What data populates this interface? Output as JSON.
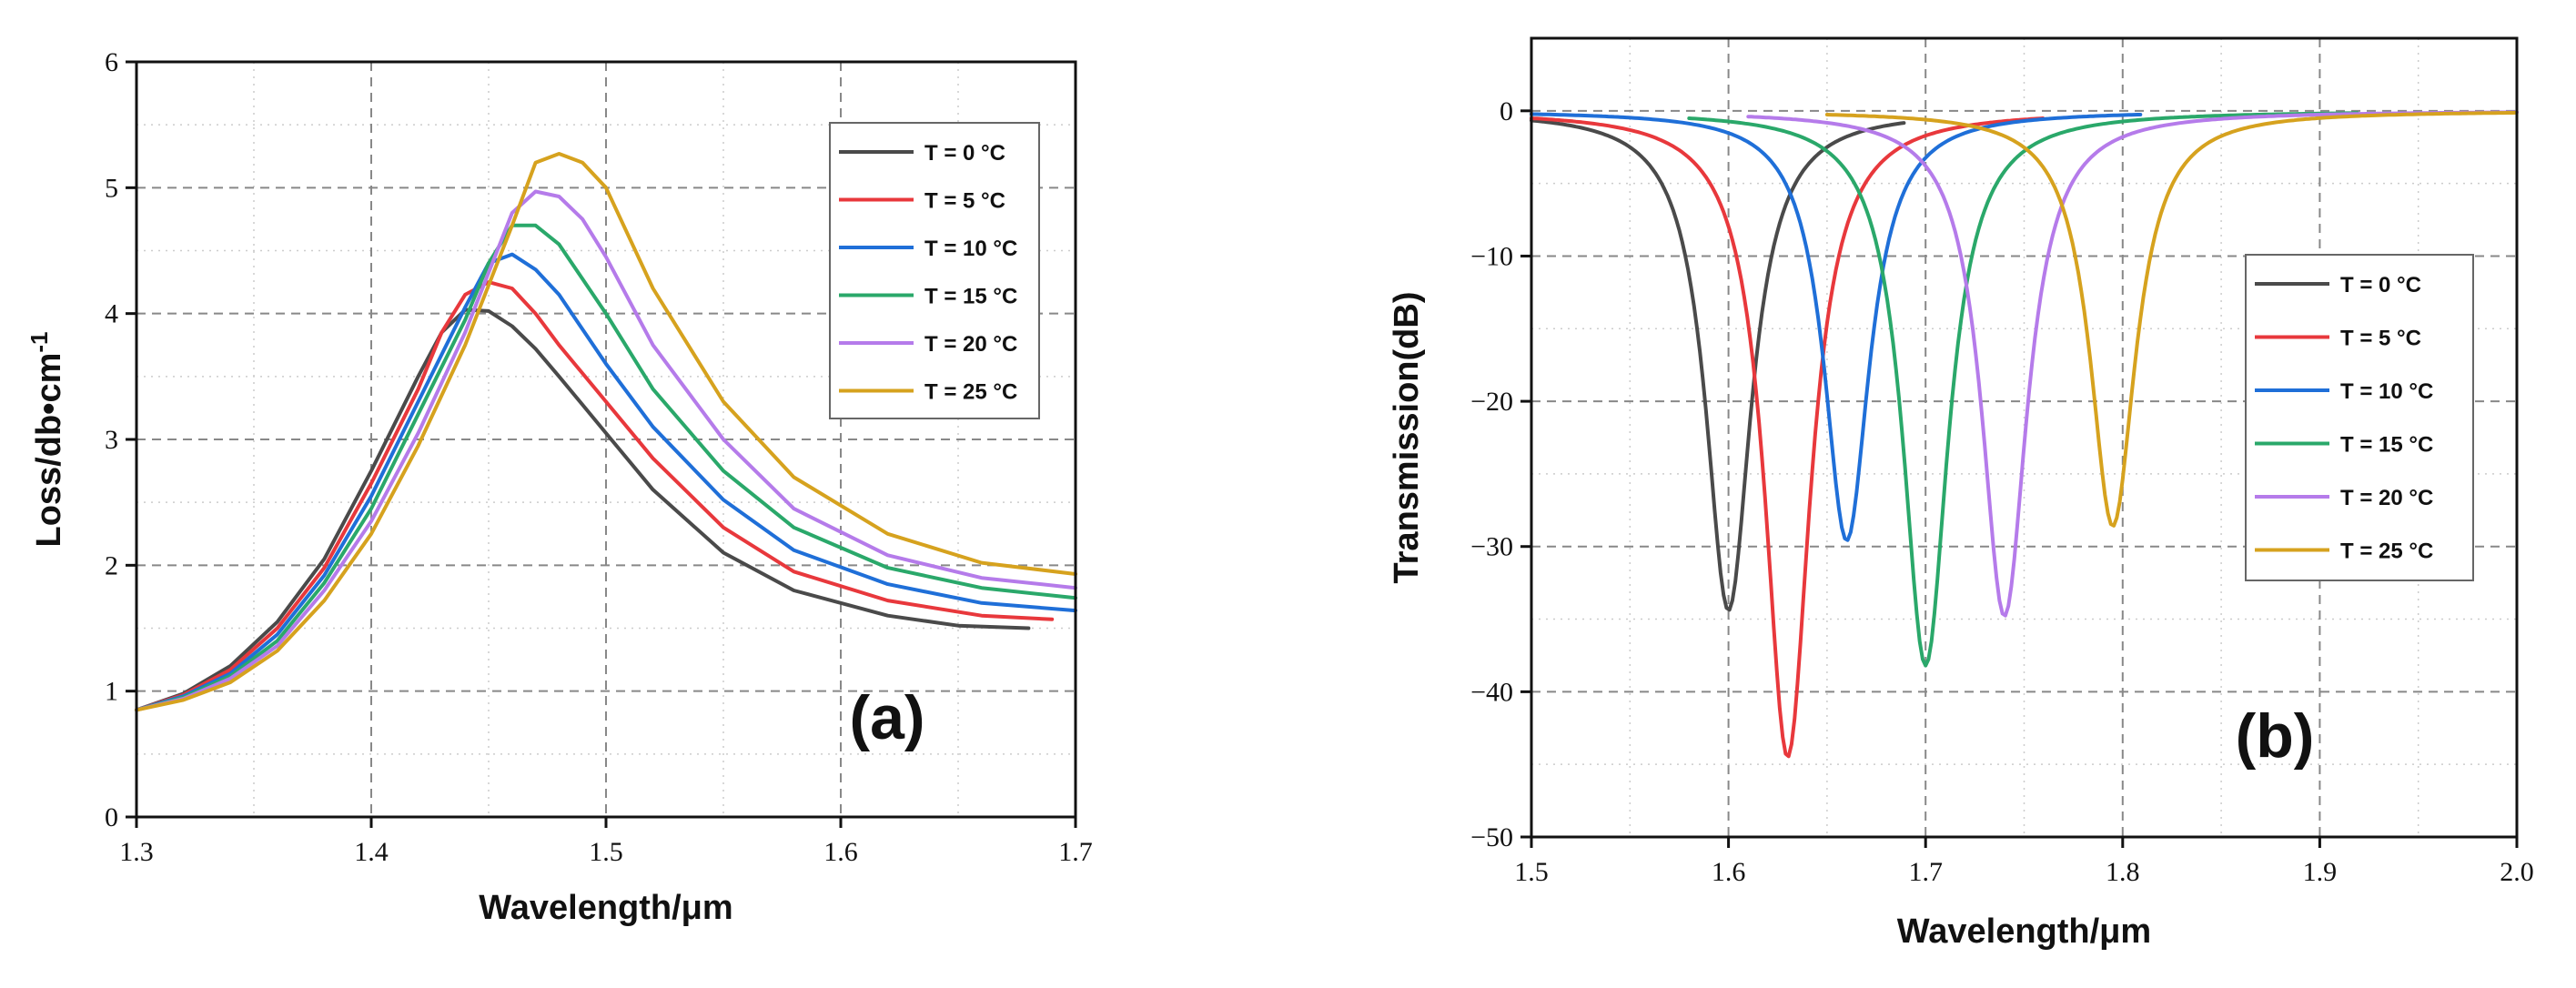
{
  "chart_data": [
    {
      "type": "line",
      "panel_label": "(a)",
      "xlabel": "Wavelength/μm",
      "ylabel": "Loss/db•cm",
      "ylabel_sup": "-1",
      "xlim": [
        1.3,
        1.7
      ],
      "ylim": [
        0,
        6
      ],
      "xticks": [
        1.3,
        1.4,
        1.5,
        1.6,
        1.7
      ],
      "xtick_labels": [
        "1.3",
        "1.4",
        "1.5",
        "1.6",
        "1.7"
      ],
      "yticks": [
        0,
        1,
        2,
        3,
        4,
        5,
        6
      ],
      "ytick_labels": [
        "0",
        "1",
        "2",
        "3",
        "4",
        "5",
        "6"
      ],
      "grid": true,
      "legend_position": "top-right",
      "series": [
        {
          "name": "T = 0 °C",
          "color": "#4a4a4a",
          "x": [
            1.3,
            1.32,
            1.34,
            1.36,
            1.38,
            1.4,
            1.42,
            1.43,
            1.44,
            1.45,
            1.46,
            1.47,
            1.48,
            1.5,
            1.52,
            1.55,
            1.58,
            1.62,
            1.65,
            1.68
          ],
          "y": [
            0.85,
            0.98,
            1.2,
            1.55,
            2.05,
            2.75,
            3.5,
            3.85,
            4.03,
            4.02,
            3.9,
            3.72,
            3.5,
            3.05,
            2.6,
            2.1,
            1.8,
            1.6,
            1.52,
            1.5
          ]
        },
        {
          "name": "T = 5 °C",
          "color": "#e8383c",
          "x": [
            1.3,
            1.32,
            1.34,
            1.36,
            1.38,
            1.4,
            1.42,
            1.43,
            1.44,
            1.45,
            1.46,
            1.47,
            1.48,
            1.5,
            1.52,
            1.55,
            1.58,
            1.62,
            1.66,
            1.69
          ],
          "y": [
            0.85,
            0.97,
            1.17,
            1.5,
            1.98,
            2.65,
            3.4,
            3.85,
            4.15,
            4.25,
            4.2,
            4.0,
            3.75,
            3.3,
            2.85,
            2.3,
            1.95,
            1.72,
            1.6,
            1.57
          ]
        },
        {
          "name": "T = 10 °C",
          "color": "#1f6fd8",
          "x": [
            1.3,
            1.32,
            1.34,
            1.36,
            1.38,
            1.4,
            1.42,
            1.44,
            1.45,
            1.46,
            1.47,
            1.48,
            1.5,
            1.52,
            1.55,
            1.58,
            1.62,
            1.66,
            1.7
          ],
          "y": [
            0.85,
            0.96,
            1.14,
            1.45,
            1.92,
            2.55,
            3.3,
            4.05,
            4.4,
            4.47,
            4.35,
            4.15,
            3.6,
            3.1,
            2.52,
            2.12,
            1.85,
            1.7,
            1.64
          ]
        },
        {
          "name": "T = 15 °C",
          "color": "#2aa86a",
          "x": [
            1.3,
            1.32,
            1.34,
            1.36,
            1.38,
            1.4,
            1.42,
            1.44,
            1.45,
            1.46,
            1.47,
            1.48,
            1.5,
            1.52,
            1.55,
            1.58,
            1.62,
            1.66,
            1.7
          ],
          "y": [
            0.85,
            0.95,
            1.12,
            1.4,
            1.86,
            2.45,
            3.2,
            3.95,
            4.4,
            4.7,
            4.7,
            4.55,
            4.0,
            3.4,
            2.75,
            2.3,
            1.98,
            1.82,
            1.74
          ]
        },
        {
          "name": "T = 20 °C",
          "color": "#b57bea",
          "x": [
            1.3,
            1.32,
            1.34,
            1.36,
            1.38,
            1.4,
            1.42,
            1.44,
            1.46,
            1.47,
            1.48,
            1.49,
            1.5,
            1.52,
            1.55,
            1.58,
            1.62,
            1.66,
            1.7
          ],
          "y": [
            0.85,
            0.94,
            1.1,
            1.36,
            1.8,
            2.35,
            3.05,
            3.85,
            4.8,
            4.97,
            4.93,
            4.75,
            4.45,
            3.75,
            3.0,
            2.45,
            2.08,
            1.9,
            1.82
          ]
        },
        {
          "name": "T = 25 °C",
          "color": "#d6a21e",
          "x": [
            1.3,
            1.32,
            1.34,
            1.36,
            1.38,
            1.4,
            1.42,
            1.44,
            1.46,
            1.47,
            1.48,
            1.49,
            1.5,
            1.52,
            1.55,
            1.58,
            1.62,
            1.66,
            1.7
          ],
          "y": [
            0.85,
            0.93,
            1.07,
            1.32,
            1.72,
            2.25,
            2.95,
            3.75,
            4.7,
            5.2,
            5.27,
            5.2,
            5.0,
            4.2,
            3.3,
            2.7,
            2.25,
            2.02,
            1.93
          ]
        }
      ]
    },
    {
      "type": "line",
      "panel_label": "(b)",
      "xlabel": "Wavelength/μm",
      "ylabel": "Transmission(dB)",
      "xlim": [
        1.5,
        2.0
      ],
      "ylim": [
        -50,
        5
      ],
      "xticks": [
        1.5,
        1.6,
        1.7,
        1.8,
        1.9,
        2.0
      ],
      "xtick_labels": [
        "1.5",
        "1.6",
        "1.7",
        "1.8",
        "1.9",
        "2.0"
      ],
      "yticks": [
        -50,
        -40,
        -30,
        -20,
        -10,
        0
      ],
      "ytick_labels": [
        "−50",
        "−40",
        "−30",
        "−20",
        "−10",
        "0"
      ],
      "grid": true,
      "legend_position": "right",
      "series": [
        {
          "name": "T = 0 °C",
          "color": "#4a4a4a",
          "center": 1.6,
          "depth": -34.4,
          "x_start": 1.5,
          "x_end": 1.69
        },
        {
          "name": "T = 5 °C",
          "color": "#e8383c",
          "center": 1.63,
          "depth": -44.5,
          "x_start": 1.5,
          "x_end": 1.76
        },
        {
          "name": "T = 10 °C",
          "color": "#1f6fd8",
          "center": 1.66,
          "depth": -29.6,
          "x_start": 1.5,
          "x_end": 1.81
        },
        {
          "name": "T = 15 °C",
          "color": "#2aa86a",
          "center": 1.7,
          "depth": -38.2,
          "x_start": 1.58,
          "x_end": 1.92
        },
        {
          "name": "T = 20 °C",
          "color": "#b57bea",
          "center": 1.74,
          "depth": -34.8,
          "x_start": 1.61,
          "x_end": 2.0
        },
        {
          "name": "T = 25 °C",
          "color": "#d6a21e",
          "center": 1.795,
          "depth": -28.6,
          "x_start": 1.65,
          "x_end": 2.0
        }
      ]
    }
  ]
}
